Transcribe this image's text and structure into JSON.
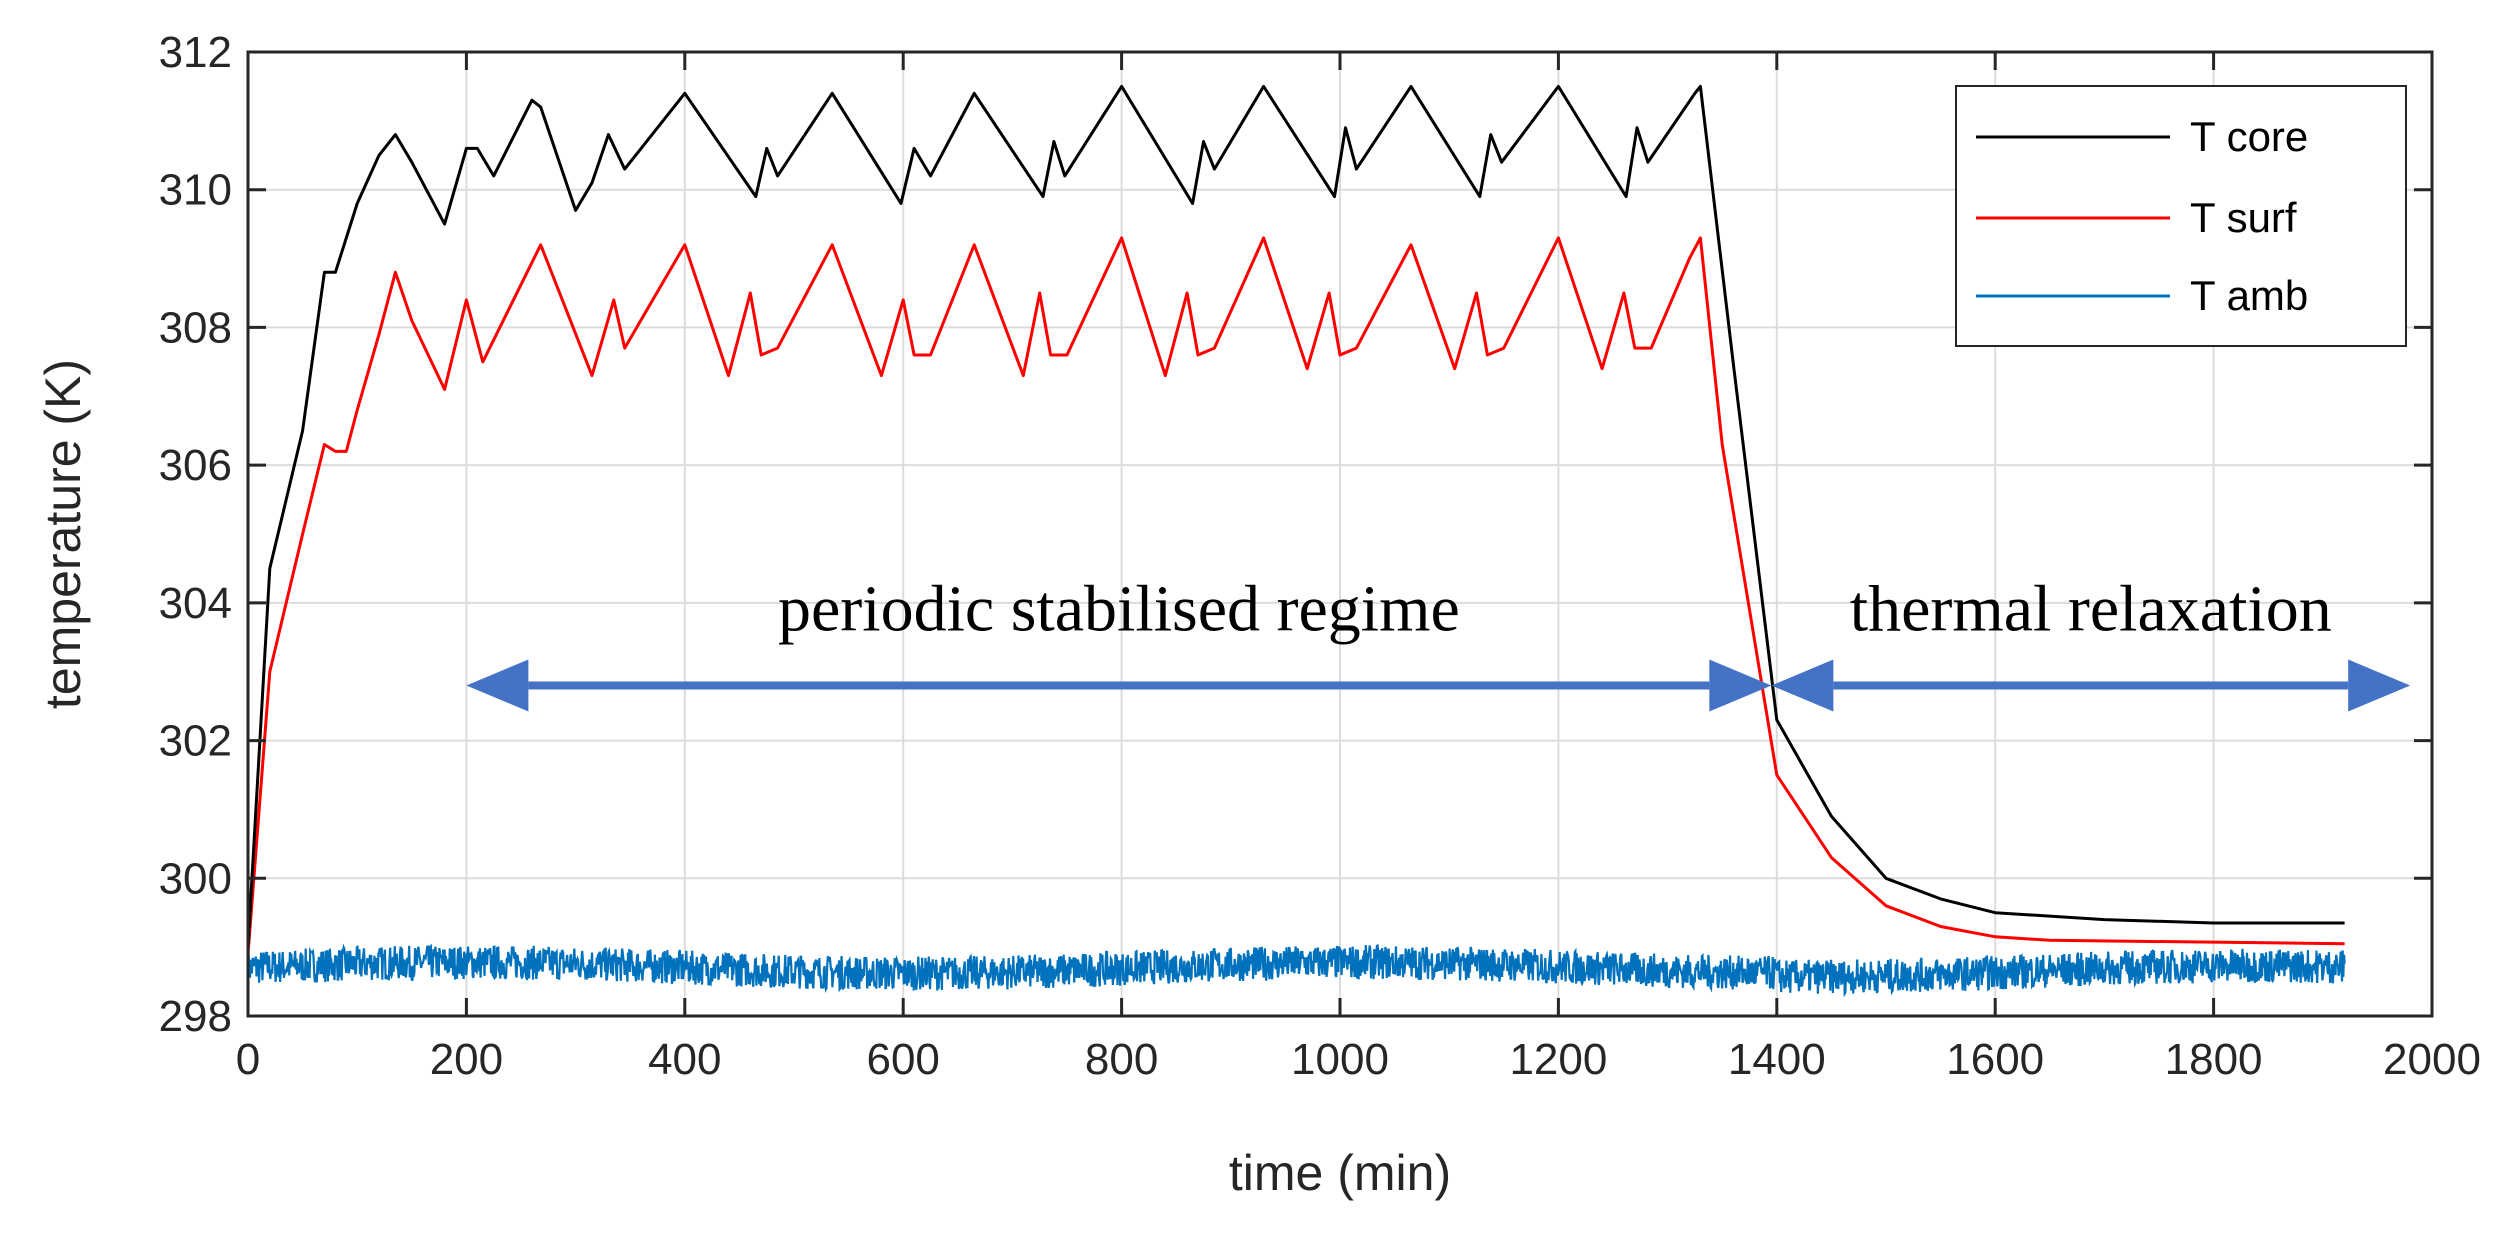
{
  "chart_data": {
    "type": "line",
    "title": "",
    "xlabel": "time (min)",
    "ylabel": "temperature (K)",
    "xlim": [
      0,
      2000
    ],
    "ylim": [
      298,
      312
    ],
    "xticks": [
      0,
      200,
      400,
      600,
      800,
      1000,
      1200,
      1400,
      1600,
      1800,
      2000
    ],
    "yticks": [
      298,
      300,
      302,
      304,
      306,
      308,
      310,
      312
    ],
    "xtick_labels": [
      "0",
      "200",
      "400",
      "600",
      "800",
      "1000",
      "1200",
      "1400",
      "1600",
      "1800",
      "2000"
    ],
    "ytick_labels": [
      "298",
      "300",
      "302",
      "304",
      "306",
      "308",
      "310",
      "312"
    ],
    "grid": true,
    "legend_position": "top-right",
    "series": [
      {
        "name": "T core",
        "color": "#000000",
        "x": [
          0,
          20,
          50,
          70,
          80,
          100,
          120,
          135,
          150,
          180,
          200,
          210,
          225,
          260,
          268,
          300,
          315,
          330,
          345,
          400,
          465,
          475,
          485,
          535,
          598,
          610,
          625,
          665,
          728,
          738,
          748,
          800,
          865,
          875,
          885,
          930,
          995,
          1005,
          1015,
          1065,
          1128,
          1138,
          1148,
          1200,
          1262,
          1272,
          1282,
          1325,
          1330,
          1360,
          1400,
          1450,
          1500,
          1550,
          1600,
          1700,
          1800,
          1920
        ],
        "values": [
          299.0,
          304.5,
          306.5,
          308.8,
          308.8,
          309.8,
          310.5,
          310.8,
          310.4,
          309.5,
          310.6,
          310.6,
          310.2,
          311.3,
          311.2,
          309.7,
          310.1,
          310.8,
          310.3,
          311.4,
          309.9,
          310.6,
          310.2,
          311.4,
          309.8,
          310.6,
          310.2,
          311.4,
          309.9,
          310.7,
          310.2,
          311.5,
          309.8,
          310.7,
          310.3,
          311.5,
          309.9,
          310.9,
          310.3,
          311.5,
          309.9,
          310.8,
          310.4,
          311.5,
          309.9,
          310.9,
          310.4,
          311.4,
          311.5,
          307.5,
          302.3,
          300.9,
          300.0,
          299.7,
          299.5,
          299.4,
          299.35,
          299.35
        ]
      },
      {
        "name": "T surf",
        "color": "#ff0000",
        "x": [
          0,
          20,
          50,
          70,
          80,
          90,
          100,
          120,
          135,
          150,
          180,
          200,
          215,
          268,
          315,
          335,
          345,
          400,
          440,
          460,
          470,
          485,
          535,
          580,
          600,
          610,
          625,
          665,
          710,
          725,
          735,
          750,
          800,
          840,
          860,
          870,
          885,
          930,
          970,
          990,
          1000,
          1015,
          1065,
          1105,
          1125,
          1135,
          1150,
          1200,
          1240,
          1260,
          1270,
          1285,
          1320,
          1330,
          1350,
          1400,
          1450,
          1500,
          1550,
          1600,
          1650,
          1920
        ],
        "values": [
          298.9,
          303.0,
          305.0,
          306.3,
          306.2,
          306.2,
          306.8,
          307.9,
          308.8,
          308.1,
          307.1,
          308.4,
          307.5,
          309.2,
          307.3,
          308.4,
          307.7,
          309.2,
          307.3,
          308.5,
          307.6,
          307.7,
          309.2,
          307.3,
          308.4,
          307.6,
          307.6,
          309.2,
          307.3,
          308.5,
          307.6,
          307.6,
          309.3,
          307.3,
          308.5,
          307.6,
          307.7,
          309.3,
          307.4,
          308.5,
          307.6,
          307.7,
          309.2,
          307.4,
          308.5,
          307.6,
          307.7,
          309.3,
          307.4,
          308.5,
          307.7,
          307.7,
          309.0,
          309.3,
          306.3,
          301.5,
          300.3,
          299.6,
          299.3,
          299.15,
          299.1,
          299.05
        ]
      },
      {
        "name": "T amb",
        "color": "#0072bd",
        "mean": 298.7,
        "noise_amplitude": 0.25,
        "x": [
          0,
          1920
        ]
      }
    ],
    "annotations": [
      {
        "text": "periodic stabilised regime",
        "x": [
          200,
          1395
        ],
        "y": 302.8,
        "label_y": 303.6,
        "color": "#4472c4"
      },
      {
        "text": "thermal relaxation",
        "x": [
          1395,
          1980
        ],
        "y": 302.8,
        "label_y": 303.6,
        "color": "#4472c4"
      }
    ]
  }
}
